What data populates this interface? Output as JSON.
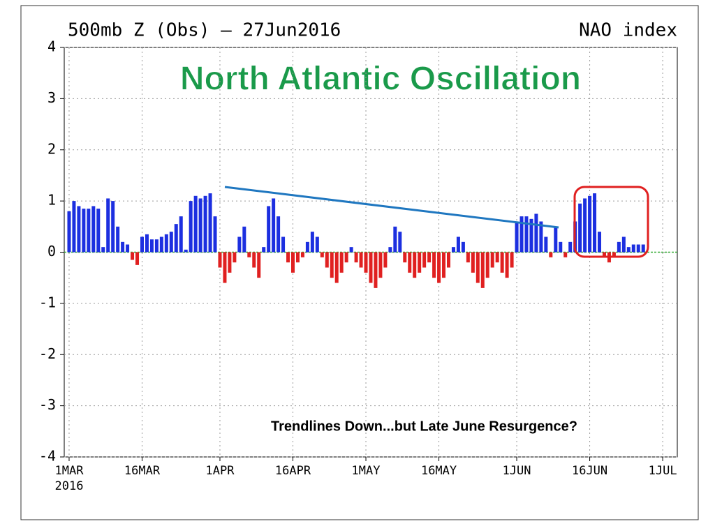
{
  "chart_data": {
    "type": "bar",
    "title": "500mb Z (Obs) – 27Jun2016",
    "subtitle": "NAO index",
    "banner": "North Atlantic Oscillation",
    "annotation": "Trendlines Down...but Late June Resurgence?",
    "x_year_label": "2016",
    "x": [
      0,
      1,
      2,
      3,
      4,
      5,
      6,
      7,
      8,
      9,
      10,
      11,
      12,
      13,
      14,
      15,
      16,
      17,
      18,
      19,
      20,
      21,
      22,
      23,
      24,
      25,
      26,
      27,
      28,
      29,
      30,
      31,
      32,
      33,
      34,
      35,
      36,
      37,
      38,
      39,
      40,
      41,
      42,
      43,
      44,
      45,
      46,
      47,
      48,
      49,
      50,
      51,
      52,
      53,
      54,
      55,
      56,
      57,
      58,
      59,
      60,
      61,
      62,
      63,
      64,
      65,
      66,
      67,
      68,
      69,
      70,
      71,
      72,
      73,
      74,
      75,
      76,
      77,
      78,
      79,
      80,
      81,
      82,
      83,
      84,
      85,
      86,
      87,
      88,
      89,
      90,
      91,
      92,
      93,
      94,
      95,
      96,
      97,
      98,
      99,
      100,
      101,
      102,
      103,
      104,
      105,
      106,
      107,
      108,
      109,
      110,
      111,
      112,
      113,
      114,
      115,
      116,
      117,
      118
    ],
    "values": [
      0.8,
      1.0,
      0.9,
      0.85,
      0.85,
      0.9,
      0.85,
      0.1,
      1.05,
      1.0,
      0.5,
      0.2,
      0.15,
      -0.15,
      -0.25,
      0.3,
      0.35,
      0.25,
      0.25,
      0.3,
      0.35,
      0.4,
      0.55,
      0.7,
      0.05,
      1.0,
      1.1,
      1.05,
      1.1,
      1.15,
      0.7,
      -0.3,
      -0.6,
      -0.4,
      -0.2,
      0.3,
      0.5,
      -0.1,
      -0.3,
      -0.5,
      0.1,
      0.9,
      1.05,
      0.7,
      0.3,
      -0.2,
      -0.4,
      -0.2,
      -0.1,
      0.2,
      0.4,
      0.3,
      -0.1,
      -0.3,
      -0.5,
      -0.6,
      -0.4,
      -0.2,
      0.1,
      -0.2,
      -0.3,
      -0.4,
      -0.6,
      -0.7,
      -0.5,
      -0.3,
      0.1,
      0.5,
      0.4,
      -0.2,
      -0.4,
      -0.5,
      -0.4,
      -0.3,
      -0.2,
      -0.5,
      -0.6,
      -0.5,
      -0.3,
      0.1,
      0.3,
      0.2,
      -0.2,
      -0.4,
      -0.6,
      -0.7,
      -0.5,
      -0.3,
      -0.2,
      -0.4,
      -0.5,
      -0.3,
      0.6,
      0.7,
      0.7,
      0.65,
      0.75,
      0.6,
      0.3,
      -0.1,
      0.5,
      0.2,
      -0.1,
      0.2,
      0.6,
      0.95,
      1.05,
      1.1,
      1.15,
      0.4,
      -0.1,
      -0.2,
      -0.1,
      0.2,
      0.3,
      0.1,
      0.15,
      0.15,
      0.15
    ],
    "positive_color": "#1c2fe0",
    "negative_color": "#e02020",
    "xlim": [
      -1,
      125
    ],
    "xticks": [
      {
        "value": 0,
        "label": "1MAR"
      },
      {
        "value": 15,
        "label": "16MAR"
      },
      {
        "value": 31,
        "label": "1APR"
      },
      {
        "value": 46,
        "label": "16APR"
      },
      {
        "value": 61,
        "label": "1MAY"
      },
      {
        "value": 76,
        "label": "16MAY"
      },
      {
        "value": 92,
        "label": "1JUN"
      },
      {
        "value": 107,
        "label": "16JUN"
      },
      {
        "value": 122,
        "label": "1JUL"
      }
    ],
    "ylim": [
      -4,
      4
    ],
    "yticks": [
      -4,
      -3,
      -2,
      -1,
      0,
      1,
      2,
      3,
      4
    ],
    "grid": true
  }
}
